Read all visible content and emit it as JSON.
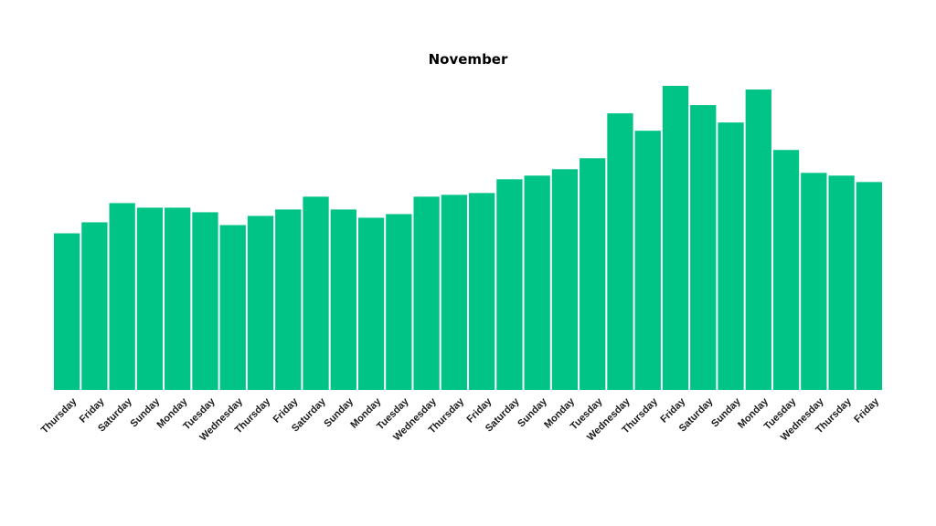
{
  "chart_data": {
    "type": "bar",
    "title": "November",
    "xlabel": "",
    "ylabel": "",
    "categories": [
      "Thursday",
      "Friday",
      "Saturday",
      "Sunday",
      "Monday",
      "Tuesday",
      "Wednesday",
      "Thursday",
      "Friday",
      "Saturday",
      "Sunday",
      "Monday",
      "Tuesday",
      "Wednesday",
      "Thursday",
      "Friday",
      "Saturday",
      "Sunday",
      "Monday",
      "Tuesday",
      "Wednesday",
      "Thursday",
      "Friday",
      "Saturday",
      "Sunday",
      "Monday",
      "Tuesday",
      "Wednesday",
      "Thursday",
      "Friday"
    ],
    "values": [
      171,
      183,
      204,
      199,
      199,
      194,
      180,
      190,
      197,
      211,
      197,
      188,
      192,
      211,
      213,
      215,
      230,
      234,
      241,
      253,
      302,
      283,
      332,
      311,
      292,
      328,
      262,
      237,
      234,
      227
    ],
    "ylim": [
      0,
      340
    ],
    "grid": false,
    "legend": "none",
    "bar_color": "#00c386"
  }
}
